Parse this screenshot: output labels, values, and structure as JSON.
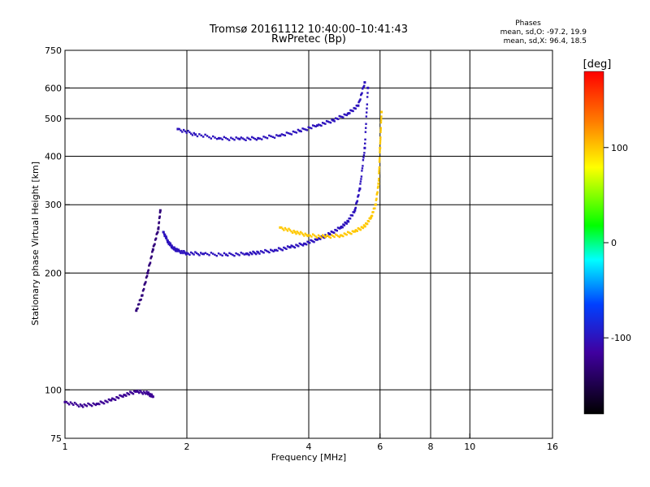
{
  "chart_data": {
    "type": "scatter",
    "title": "Tromsø 20161112 10:40:00–10:41:43",
    "subtitle": "RwPretec (Bp)",
    "xlabel": "Frequency [MHz]",
    "ylabel": "Stationary phase Virtual Height [km]",
    "xscale": "log",
    "yscale": "log",
    "xlim": [
      1,
      16
    ],
    "ylim": [
      75,
      750
    ],
    "x_ticks": [
      "1",
      "2",
      "4",
      "6",
      "8",
      "10",
      "16"
    ],
    "y_ticks": [
      "75",
      "100",
      "200",
      "300",
      "400",
      "500",
      "600",
      "750"
    ],
    "x_gridlines": [
      2,
      4,
      6,
      8,
      10
    ],
    "y_gridlines": [
      100,
      200,
      300,
      400,
      500,
      600
    ],
    "grid": true,
    "stats": {
      "heading": "Phases",
      "line_o": "mean, sd,O: -97.2, 19.9",
      "line_x": "mean, sd,X:  96.4, 18.5"
    },
    "colorbar": {
      "label": "[deg]",
      "ticks": [
        "100",
        "0",
        "-100"
      ],
      "range": [
        -180,
        180
      ]
    },
    "series": [
      {
        "role": "O-mode F-trace low",
        "phase": -100,
        "x": [
          1.75,
          1.8,
          1.85,
          1.9,
          2.0,
          2.2,
          2.5,
          2.8,
          3.0,
          3.3,
          3.6,
          3.9,
          4.2,
          4.5,
          4.8,
          5.0,
          5.2,
          5.35,
          5.5,
          5.6
        ],
        "y": [
          255,
          240,
          232,
          228,
          225,
          224,
          223,
          224,
          226,
          229,
          233,
          238,
          244,
          252,
          262,
          272,
          290,
          330,
          420,
          600
        ]
      },
      {
        "role": "O-mode F-trace high",
        "phase": -100,
        "x": [
          1.9,
          2.1,
          2.4,
          2.7,
          3.0,
          3.4,
          3.8,
          4.2,
          4.6,
          5.0,
          5.3,
          5.5
        ],
        "y": [
          470,
          455,
          445,
          443,
          445,
          452,
          465,
          480,
          495,
          515,
          540,
          620
        ]
      },
      {
        "role": "X-mode F-trace",
        "phase": 100,
        "x": [
          3.4,
          3.7,
          4.0,
          4.4,
          4.8,
          5.2,
          5.5,
          5.7,
          5.85,
          5.95,
          6.0,
          6.05
        ],
        "y": [
          262,
          255,
          250,
          248,
          250,
          256,
          264,
          278,
          300,
          340,
          420,
          520
        ]
      },
      {
        "role": "E-region / Es",
        "phase": -120,
        "x": [
          1.0,
          1.1,
          1.2,
          1.3,
          1.4,
          1.5,
          1.6,
          1.65
        ],
        "y": [
          93,
          91,
          92,
          94,
          97,
          99,
          98,
          96
        ]
      },
      {
        "role": "lower F1 trace",
        "phase": -130,
        "x": [
          1.5,
          1.55,
          1.6,
          1.65,
          1.7,
          1.72
        ],
        "y": [
          160,
          175,
          200,
          230,
          260,
          290
        ]
      }
    ]
  }
}
